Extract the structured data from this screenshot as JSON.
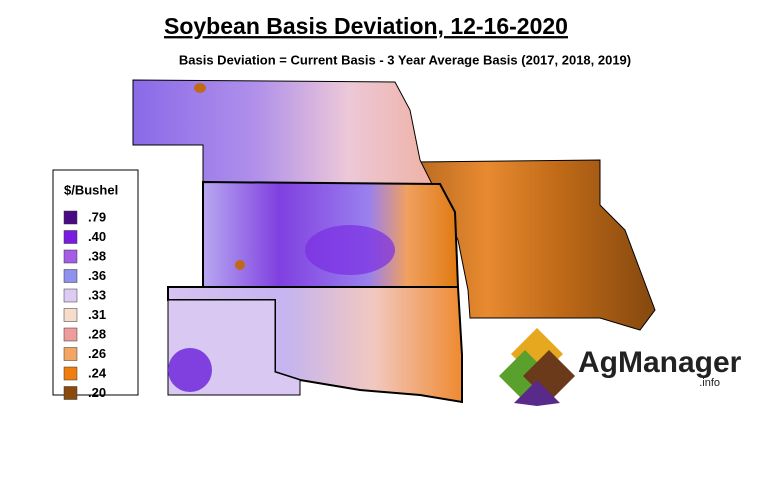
{
  "title": "Soybean Basis Deviation, 12-16-2020",
  "subtitle": "Basis Deviation = Current Basis - 3 Year Average Basis (2017, 2018, 2019)",
  "legend": {
    "title": "$/Bushel",
    "items": [
      {
        "label": ".79",
        "color": "#4a0a86"
      },
      {
        "label": ".40",
        "color": "#7b1de0"
      },
      {
        "label": ".38",
        "color": "#a65de6"
      },
      {
        "label": ".36",
        "color": "#9090ee"
      },
      {
        "label": ".33",
        "color": "#dccbf2"
      },
      {
        "label": ".31",
        "color": "#f6dccb"
      },
      {
        "label": ".28",
        "color": "#ee9c9c"
      },
      {
        "label": ".26",
        "color": "#f3a663"
      },
      {
        "label": ".24",
        "color": "#ef7d10"
      },
      {
        "label": ".20",
        "color": "#8a4a0e"
      }
    ]
  },
  "logo": {
    "name": "AgManager",
    "suffix": ".info"
  }
}
